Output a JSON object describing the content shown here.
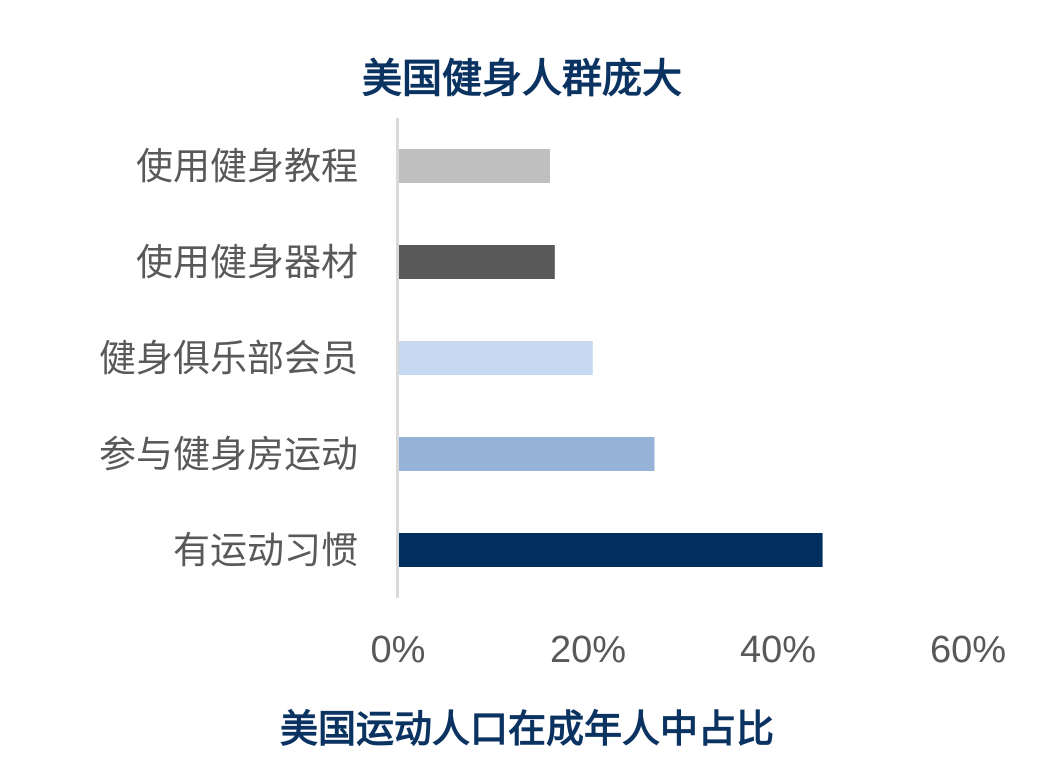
{
  "colors": {
    "title": "#0b3361",
    "label_text": "#595959",
    "axis_line": "#d9d9d9"
  },
  "chart_data": {
    "type": "bar",
    "orientation": "horizontal",
    "title": "美国健身人群庞大",
    "subtitle": "美国运动人口在成年人中占比",
    "categories": [
      "使用健身教程",
      "使用健身器材",
      "健身俱乐部会员",
      "参与健身房运动",
      "有运动习惯"
    ],
    "values": [
      0.16,
      0.165,
      0.205,
      0.27,
      0.447
    ],
    "bar_colors": [
      "#bfbfbf",
      "#595959",
      "#c6d9f0",
      "#95b3d7",
      "#002f5f"
    ],
    "xlim": [
      0,
      0.6
    ],
    "xticks": [
      0,
      0.2,
      0.4,
      0.6
    ],
    "xtick_labels": [
      "0%",
      "20%",
      "40%",
      "60%"
    ],
    "grid": false,
    "legend": "none"
  }
}
